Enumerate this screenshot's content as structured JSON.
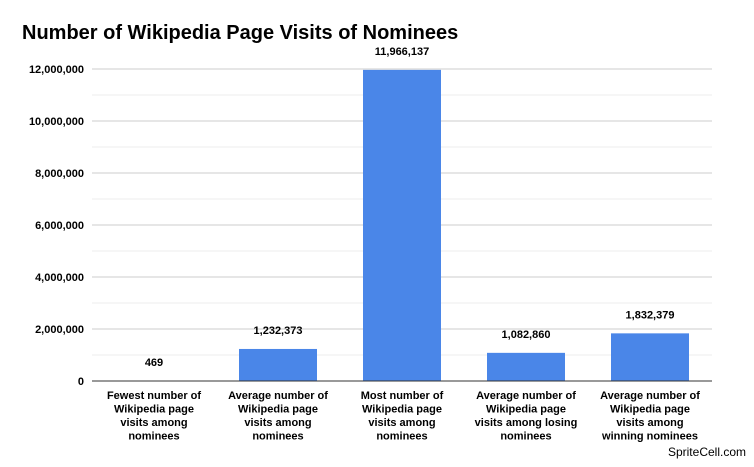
{
  "chart_data": {
    "type": "bar",
    "title": "Number of Wikipedia Page Visits of Nominees",
    "xlabel": "",
    "ylabel": "",
    "ylim": [
      0,
      12000000
    ],
    "yticks": [
      0,
      2000000,
      4000000,
      6000000,
      8000000,
      10000000,
      12000000
    ],
    "ytick_labels": [
      "0",
      "2,000,000",
      "4,000,000",
      "6,000,000",
      "8,000,000",
      "10,000,000",
      "12,000,000"
    ],
    "grid": true,
    "bar_color": "#4a86e8",
    "categories": [
      [
        "Fewest number of",
        "Wikipedia page",
        "visits among",
        "nominees"
      ],
      [
        "Average number of",
        "Wikipedia page",
        "visits among",
        "nominees"
      ],
      [
        "Most number of",
        "Wikipedia page",
        "visits among",
        "nominees"
      ],
      [
        "Average number of",
        "Wikipedia page",
        "visits among losing",
        "nominees"
      ],
      [
        "Average number of",
        "Wikipedia page",
        "visits among",
        "winning nominees"
      ]
    ],
    "values": [
      469,
      1232373,
      11966137,
      1082860,
      1832379
    ],
    "value_labels": [
      "469",
      "1,232,373",
      "11,966,137",
      "1,082,860",
      "1,832,379"
    ]
  },
  "watermark": "SpriteCell.com"
}
